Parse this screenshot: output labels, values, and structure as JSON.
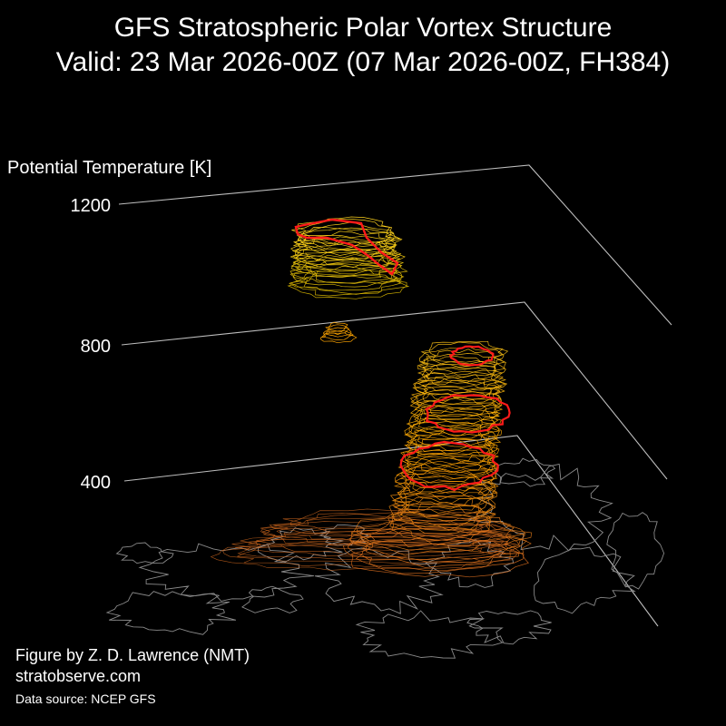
{
  "title_line_1": "GFS Stratospheric Polar Vortex Structure",
  "title_line_2": "Valid: 23 Mar 2026-00Z  (07 Mar 2026-00Z, FH384)",
  "credits": {
    "author": "Figure by Z. D. Lawrence (NMT)",
    "site": "stratobserve.com",
    "source": "Data source: NCEP GFS"
  },
  "chart_data": {
    "type": "3d-isosurface",
    "zlabel": "Potential Temperature [K]",
    "z_ticks": [
      400,
      800,
      1200
    ],
    "zlim": [
      350,
      1200
    ],
    "colors": {
      "background": "#000000",
      "grid": "#bdbdbd",
      "coastline": "#8a8a8a",
      "vortex_edge": "#ff1a1a",
      "contours_low": "#d2691e",
      "contours_mid": "#ffa500",
      "contours_high": "#ffd21f"
    }
  }
}
